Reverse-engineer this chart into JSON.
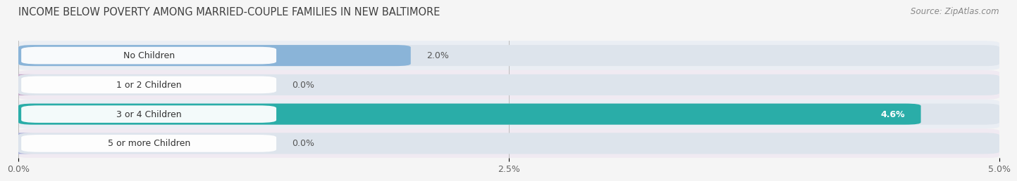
{
  "title": "INCOME BELOW POVERTY AMONG MARRIED-COUPLE FAMILIES IN NEW BALTIMORE",
  "source": "Source: ZipAtlas.com",
  "categories": [
    "No Children",
    "1 or 2 Children",
    "3 or 4 Children",
    "5 or more Children"
  ],
  "values": [
    2.0,
    0.0,
    4.6,
    0.0
  ],
  "bar_colors": [
    "#8ab4d8",
    "#c4a8c8",
    "#2aada8",
    "#a8b0d8"
  ],
  "row_bg_colors": [
    "#e8eef4",
    "#f0eaf0",
    "#e0f0f0",
    "#eaeaf4"
  ],
  "xlim_max": 5.0,
  "xticks": [
    0.0,
    2.5,
    5.0
  ],
  "xticklabels": [
    "0.0%",
    "2.5%",
    "5.0%"
  ],
  "background_color": "#f5f5f5",
  "bar_bg_color": "#dde8f0",
  "title_fontsize": 10.5,
  "source_fontsize": 8.5,
  "label_fontsize": 9,
  "value_fontsize": 9,
  "tick_fontsize": 9
}
